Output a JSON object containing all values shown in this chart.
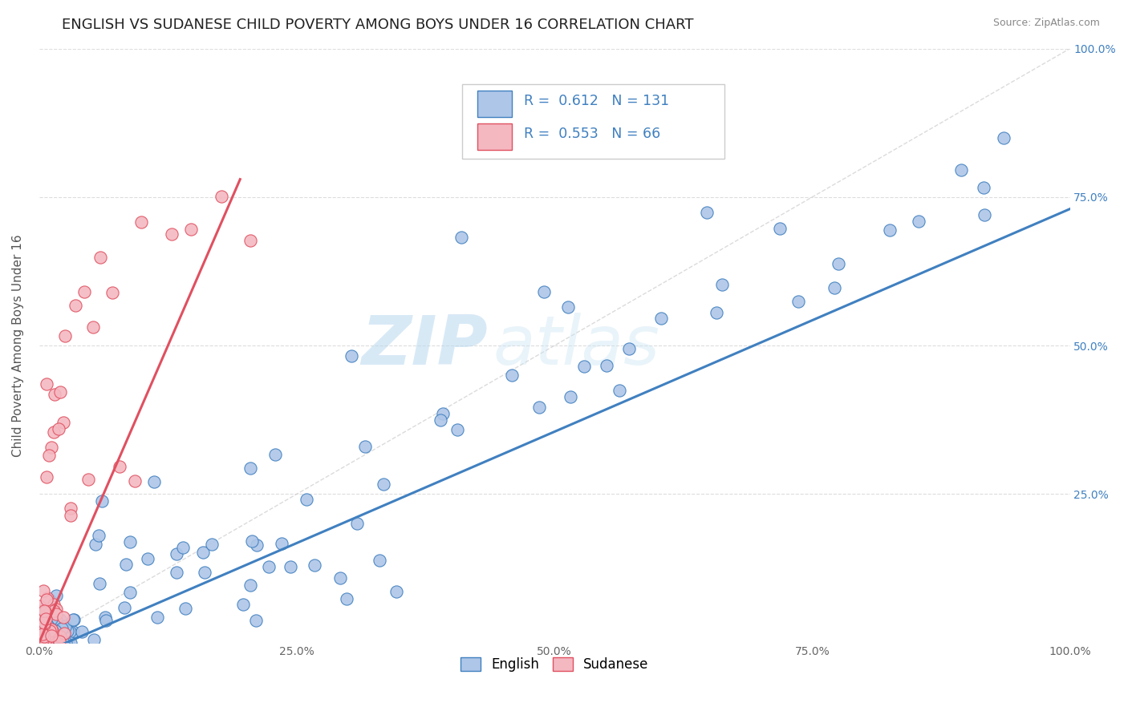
{
  "title": "ENGLISH VS SUDANESE CHILD POVERTY AMONG BOYS UNDER 16 CORRELATION CHART",
  "source": "Source: ZipAtlas.com",
  "ylabel": "Child Poverty Among Boys Under 16",
  "xlim": [
    0.0,
    1.0
  ],
  "ylim": [
    0.0,
    1.0
  ],
  "xtick_labels": [
    "0.0%",
    "25.0%",
    "50.0%",
    "75.0%",
    "100.0%"
  ],
  "xtick_vals": [
    0.0,
    0.25,
    0.5,
    0.75,
    1.0
  ],
  "ytick_labels": [
    "25.0%",
    "50.0%",
    "75.0%",
    "100.0%"
  ],
  "ytick_vals": [
    0.25,
    0.5,
    0.75,
    1.0
  ],
  "english_R": 0.612,
  "english_N": 131,
  "sudanese_R": 0.553,
  "sudanese_N": 66,
  "english_color": "#aec6e8",
  "sudanese_color": "#f4b8c1",
  "english_line_color": "#4080c0",
  "sudanese_line_color": "#e05060",
  "diagonal_color": "#cccccc",
  "background_color": "#ffffff",
  "watermark_zip": "ZIP",
  "watermark_atlas": "atlas",
  "title_fontsize": 13,
  "label_fontsize": 11,
  "tick_fontsize": 10,
  "legend_fontsize": 12
}
